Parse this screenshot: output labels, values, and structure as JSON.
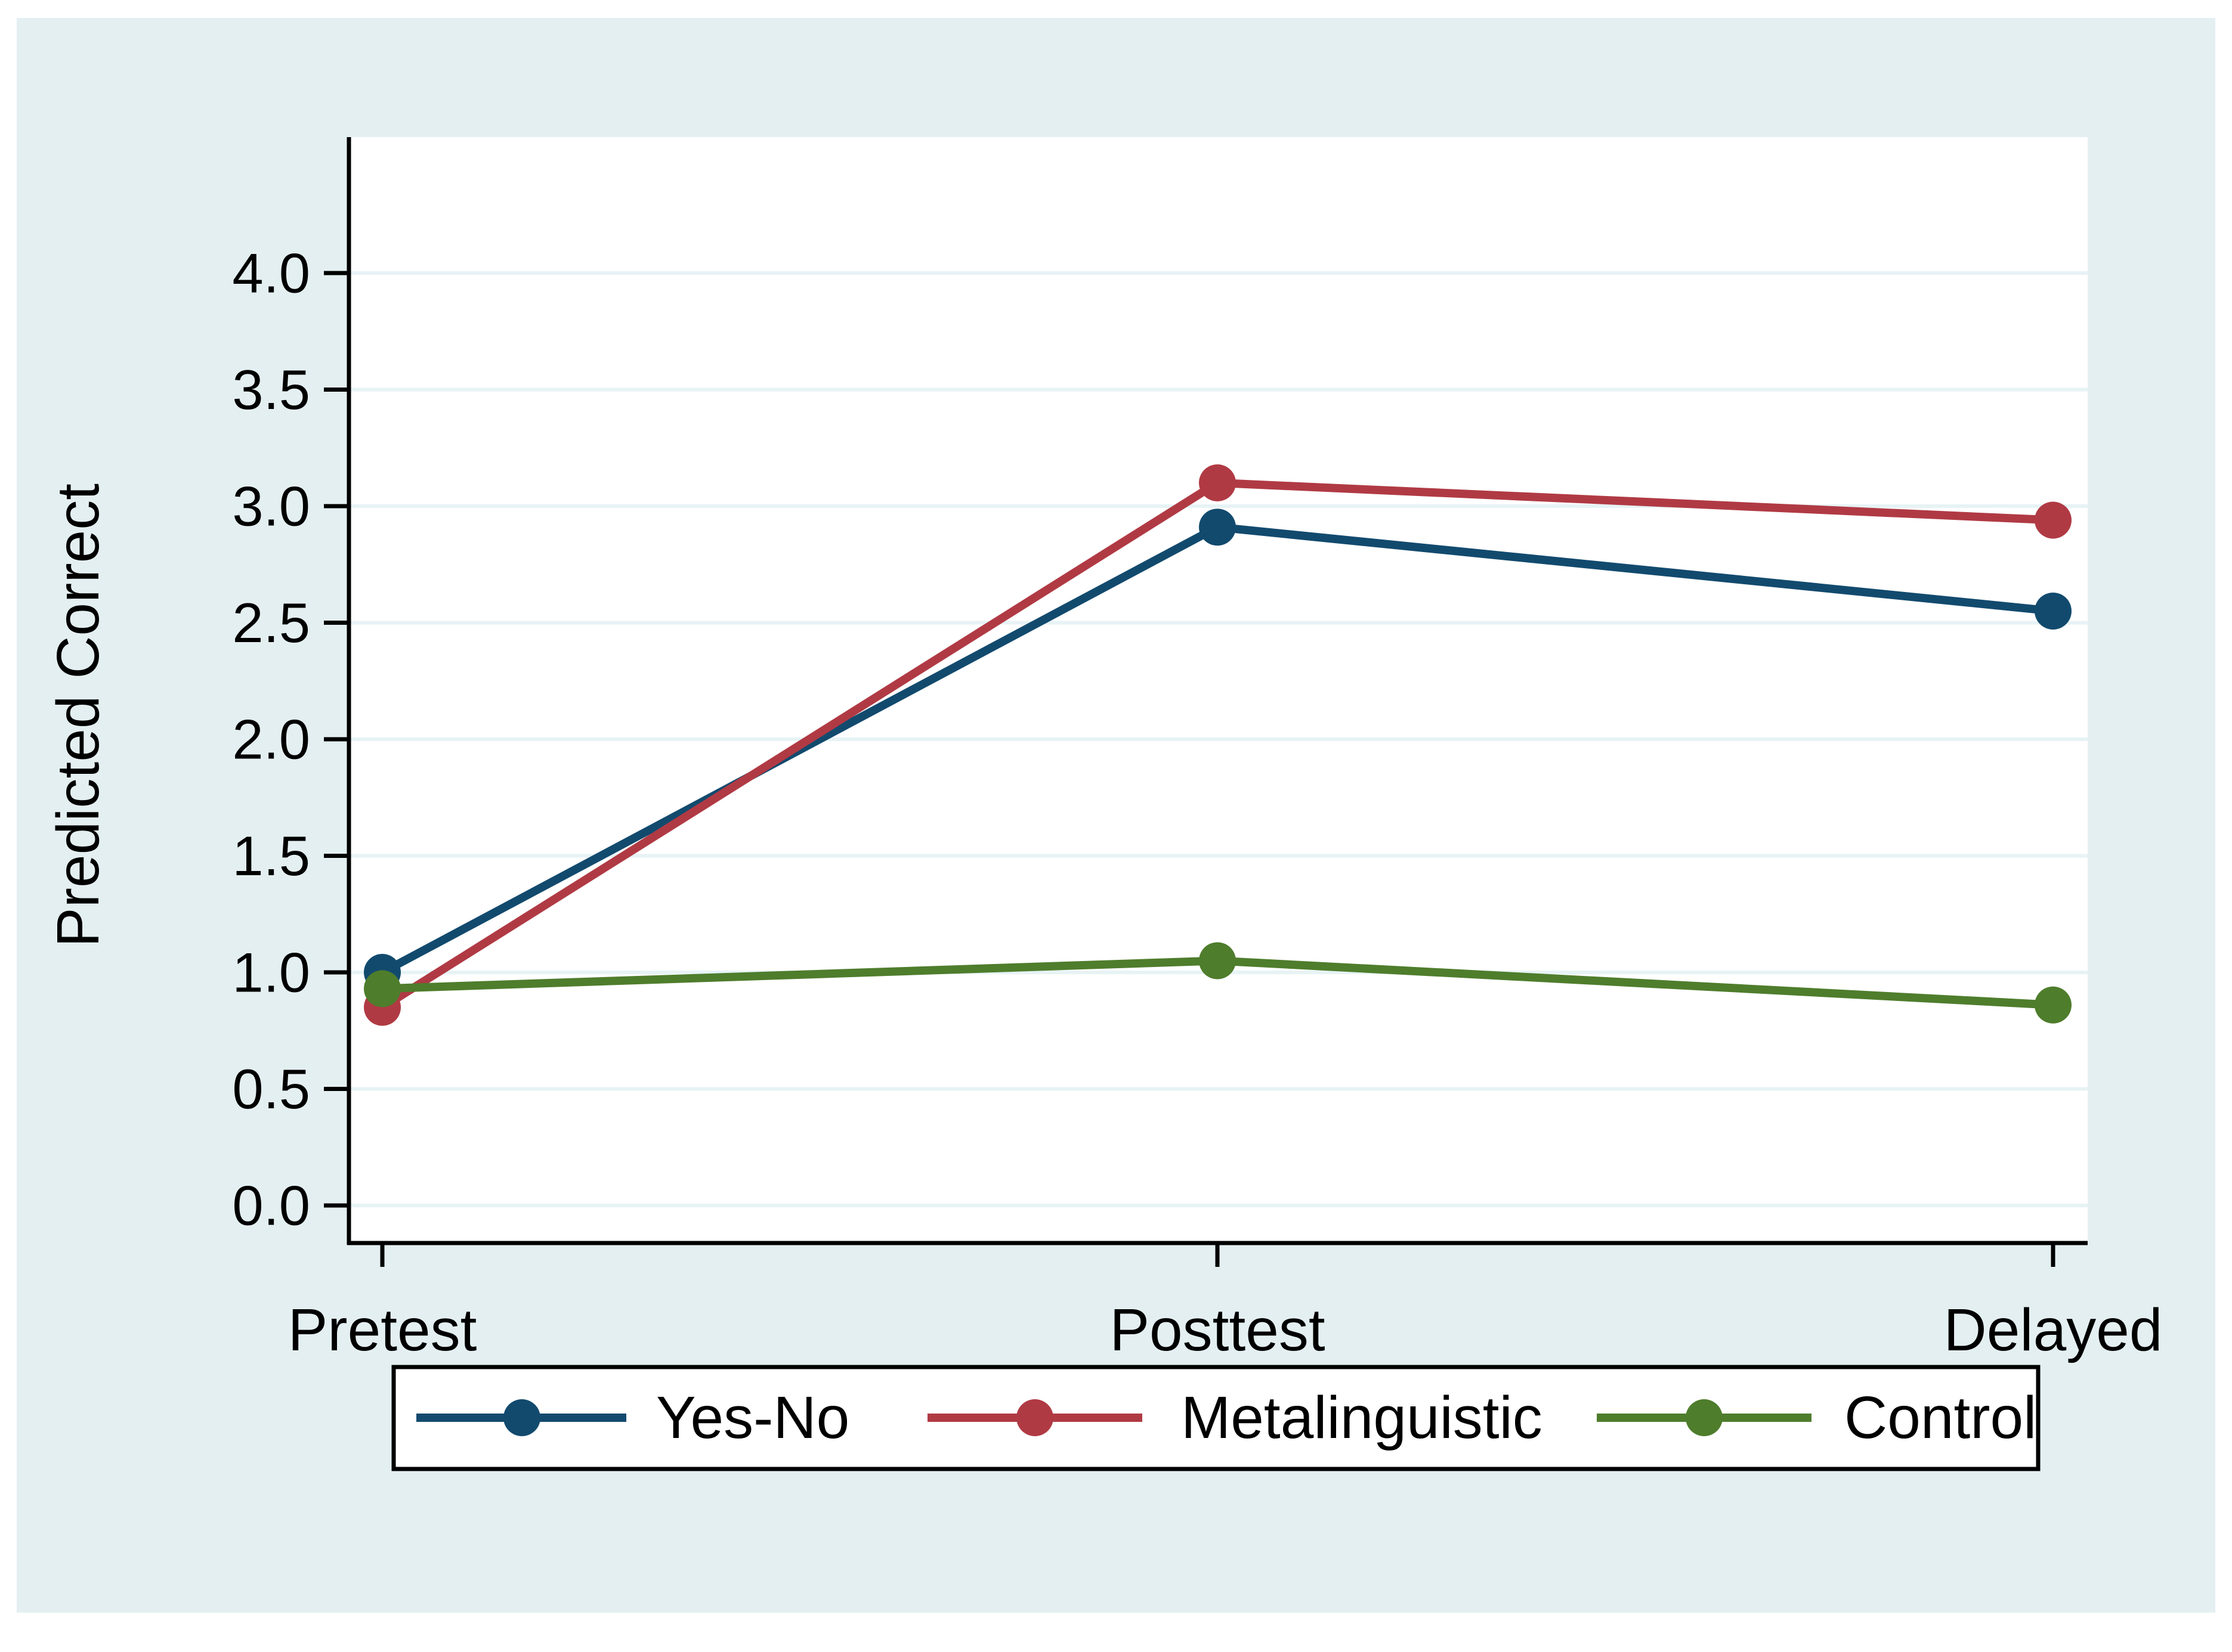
{
  "figure": {
    "page_background": "#ffffff",
    "canvas_background": "#e4eff1",
    "plot_background": "#ffffff",
    "gridline_color": "#e7f3f5",
    "axis_color": "#000000",
    "legend_border_color": "#000000",
    "legend_background": "#ffffff"
  },
  "chart_data": {
    "type": "line",
    "title": "",
    "xlabel": "",
    "ylabel": "Predicted Correct",
    "categories": [
      "Pretest",
      "Posttest",
      "Delayed"
    ],
    "y_ticks": [
      "0.0",
      "0.5",
      "1.0",
      "1.5",
      "2.0",
      "2.5",
      "3.0",
      "3.5",
      "4.0"
    ],
    "ylim": [
      0,
      4
    ],
    "grid": true,
    "legend_position": "bottom",
    "marker": "circle",
    "series": [
      {
        "name": "Yes-No",
        "color": "#124a6e",
        "values": [
          1.0,
          2.91,
          2.55
        ]
      },
      {
        "name": "Metalinguistic",
        "color": "#b03a44",
        "values": [
          0.85,
          3.1,
          2.94
        ]
      },
      {
        "name": "Control",
        "color": "#4e7d2c",
        "values": [
          0.93,
          1.05,
          0.86
        ]
      }
    ]
  }
}
